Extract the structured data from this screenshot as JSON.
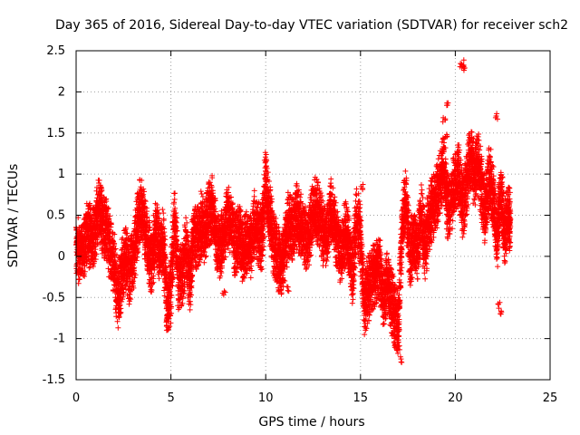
{
  "chart_data": {
    "type": "scatter",
    "title": "Day 365 of 2016, Sidereal Day-to-day VTEC variation (SDTVAR) for receiver sch2",
    "xlabel": "GPS time / hours",
    "ylabel": "SDTVAR / TECUs",
    "xlim": [
      0,
      25
    ],
    "ylim": [
      -1.5,
      2.5
    ],
    "x_ticks": [
      0,
      5,
      10,
      15,
      20,
      25
    ],
    "x_tick_labels": [
      "0",
      "5",
      "10",
      "15",
      "20",
      "25"
    ],
    "y_ticks": [
      -1.5,
      -1,
      -0.5,
      0,
      0.5,
      1,
      1.5,
      2,
      2.5
    ],
    "y_tick_labels": [
      "-1.5",
      "-1",
      "-0.5",
      "0",
      "0.5",
      "1",
      "1.5",
      "2",
      "2.5"
    ],
    "grid": true,
    "marker": "+",
    "color": "#ff0000",
    "series": [
      {
        "name": "SDTVAR",
        "trend": [
          [
            0.0,
            0.1
          ],
          [
            0.2,
            0.05
          ],
          [
            0.4,
            0.1
          ],
          [
            0.6,
            0.3
          ],
          [
            0.8,
            0.2
          ],
          [
            1.0,
            0.3
          ],
          [
            1.2,
            0.6
          ],
          [
            1.4,
            0.4
          ],
          [
            1.6,
            0.3
          ],
          [
            1.8,
            0.1
          ],
          [
            2.0,
            -0.1
          ],
          [
            2.2,
            -0.5
          ],
          [
            2.4,
            -0.2
          ],
          [
            2.6,
            0.0
          ],
          [
            2.8,
            -0.2
          ],
          [
            3.0,
            -0.1
          ],
          [
            3.2,
            0.3
          ],
          [
            3.4,
            0.6
          ],
          [
            3.6,
            0.4
          ],
          [
            3.8,
            0.1
          ],
          [
            4.0,
            -0.1
          ],
          [
            4.2,
            0.3
          ],
          [
            4.4,
            0.1
          ],
          [
            4.6,
            0.2
          ],
          [
            4.8,
            -0.6
          ],
          [
            5.0,
            -0.4
          ],
          [
            5.2,
            0.5
          ],
          [
            5.4,
            -0.3
          ],
          [
            5.6,
            -0.2
          ],
          [
            5.8,
            0.1
          ],
          [
            6.0,
            -0.3
          ],
          [
            6.2,
            0.3
          ],
          [
            6.4,
            0.2
          ],
          [
            6.6,
            0.4
          ],
          [
            6.8,
            0.3
          ],
          [
            7.0,
            0.5
          ],
          [
            7.2,
            0.6
          ],
          [
            7.4,
            0.2
          ],
          [
            7.6,
            0.1
          ],
          [
            7.8,
            0.3
          ],
          [
            8.0,
            0.5
          ],
          [
            8.2,
            0.4
          ],
          [
            8.4,
            0.1
          ],
          [
            8.6,
            0.3
          ],
          [
            8.8,
            0.0
          ],
          [
            9.0,
            0.2
          ],
          [
            9.2,
            0.1
          ],
          [
            9.4,
            0.4
          ],
          [
            9.6,
            0.3
          ],
          [
            9.8,
            0.2
          ],
          [
            10.0,
            0.9
          ],
          [
            10.2,
            0.5
          ],
          [
            10.4,
            0.2
          ],
          [
            10.6,
            0.0
          ],
          [
            10.8,
            -0.1
          ],
          [
            11.0,
            0.1
          ],
          [
            11.2,
            0.4
          ],
          [
            11.4,
            0.3
          ],
          [
            11.6,
            0.5
          ],
          [
            11.8,
            0.4
          ],
          [
            12.0,
            0.3
          ],
          [
            12.2,
            0.2
          ],
          [
            12.4,
            0.4
          ],
          [
            12.6,
            0.6
          ],
          [
            12.8,
            0.5
          ],
          [
            13.0,
            0.3
          ],
          [
            13.2,
            0.2
          ],
          [
            13.4,
            0.6
          ],
          [
            13.6,
            0.4
          ],
          [
            13.8,
            0.2
          ],
          [
            14.0,
            0.0
          ],
          [
            14.2,
            0.3
          ],
          [
            14.4,
            0.1
          ],
          [
            14.6,
            -0.2
          ],
          [
            14.8,
            0.5
          ],
          [
            15.0,
            0.2
          ],
          [
            15.2,
            -0.6
          ],
          [
            15.4,
            -0.4
          ],
          [
            15.6,
            -0.3
          ],
          [
            15.8,
            -0.2
          ],
          [
            16.0,
            -0.1
          ],
          [
            16.2,
            -0.5
          ],
          [
            16.4,
            -0.3
          ],
          [
            16.6,
            -0.5
          ],
          [
            16.8,
            -0.7
          ],
          [
            17.0,
            -0.8
          ],
          [
            17.2,
            0.4
          ],
          [
            17.4,
            0.7
          ],
          [
            17.6,
            0.0
          ],
          [
            17.8,
            0.2
          ],
          [
            18.0,
            0.1
          ],
          [
            18.2,
            0.5
          ],
          [
            18.4,
            0.1
          ],
          [
            18.6,
            0.4
          ],
          [
            18.8,
            0.6
          ],
          [
            19.0,
            0.7
          ],
          [
            19.2,
            0.9
          ],
          [
            19.4,
            1.1
          ],
          [
            19.6,
            0.6
          ],
          [
            19.8,
            0.7
          ],
          [
            20.0,
            0.9
          ],
          [
            20.2,
            1.0
          ],
          [
            20.4,
            0.6
          ],
          [
            20.6,
            0.9
          ],
          [
            20.8,
            1.2
          ],
          [
            21.0,
            1.0
          ],
          [
            21.2,
            1.1
          ],
          [
            21.4,
            0.8
          ],
          [
            21.6,
            0.5
          ],
          [
            21.8,
            1.0
          ],
          [
            22.0,
            0.7
          ],
          [
            22.2,
            0.2
          ],
          [
            22.4,
            0.8
          ],
          [
            22.6,
            0.3
          ],
          [
            22.8,
            0.5
          ],
          [
            22.9,
            0.4
          ]
        ],
        "outliers": [
          [
            20.4,
            2.35
          ],
          [
            20.5,
            2.3
          ],
          [
            20.3,
            2.33
          ],
          [
            19.6,
            1.85
          ],
          [
            19.4,
            1.65
          ],
          [
            17.1,
            -1.25
          ],
          [
            17.0,
            -1.1
          ],
          [
            4.8,
            -0.87
          ],
          [
            2.3,
            -0.65
          ],
          [
            22.4,
            -0.7
          ],
          [
            22.3,
            -0.6
          ],
          [
            10.0,
            1.15
          ],
          [
            15.1,
            0.85
          ],
          [
            21.2,
            1.45
          ],
          [
            22.2,
            1.7
          ],
          [
            19.5,
            1.45
          ],
          [
            16.9,
            -1.05
          ],
          [
            11.2,
            -0.4
          ],
          [
            7.8,
            -0.45
          ]
        ]
      }
    ]
  }
}
